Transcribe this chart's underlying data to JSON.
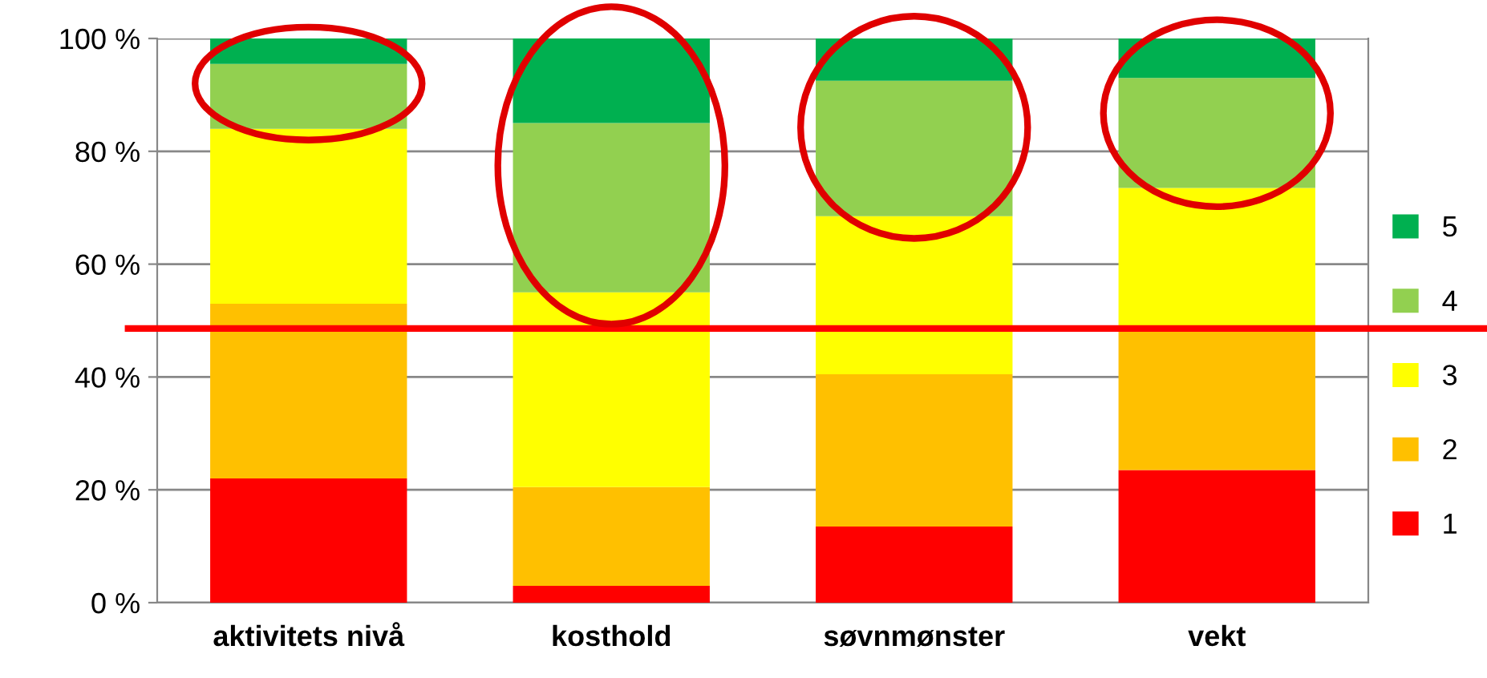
{
  "chart_data": {
    "type": "bar",
    "stacked": true,
    "categories": [
      "aktivitets nivå",
      "kosthold",
      "søvnmønster",
      "vekt"
    ],
    "series": [
      {
        "name": "1",
        "color": "#ff0000",
        "values": [
          22,
          3,
          13.5,
          23.5
        ]
      },
      {
        "name": "2",
        "color": "#ffc000",
        "values": [
          31,
          17.5,
          27,
          25.5
        ]
      },
      {
        "name": "3",
        "color": "#ffff00",
        "values": [
          31,
          34.5,
          28,
          24.5
        ]
      },
      {
        "name": "4",
        "color": "#92d050",
        "values": [
          11.5,
          30,
          24,
          19.5
        ]
      },
      {
        "name": "5",
        "color": "#00b050",
        "values": [
          4.5,
          15,
          7.5,
          7
        ]
      }
    ],
    "ylim": [
      0,
      100
    ],
    "yticks": [
      {
        "value": 0,
        "label": "0 %"
      },
      {
        "value": 20,
        "label": "20 %"
      },
      {
        "value": 40,
        "label": "40 %"
      },
      {
        "value": 60,
        "label": "60 %"
      },
      {
        "value": 80,
        "label": "80 %"
      },
      {
        "value": 100,
        "label": "100 %"
      }
    ],
    "grid": "y",
    "legend": "right",
    "ref_lines": [
      {
        "axis": "y",
        "value": 48.6,
        "color": "#ff0000",
        "line_style": "solid"
      }
    ]
  }
}
